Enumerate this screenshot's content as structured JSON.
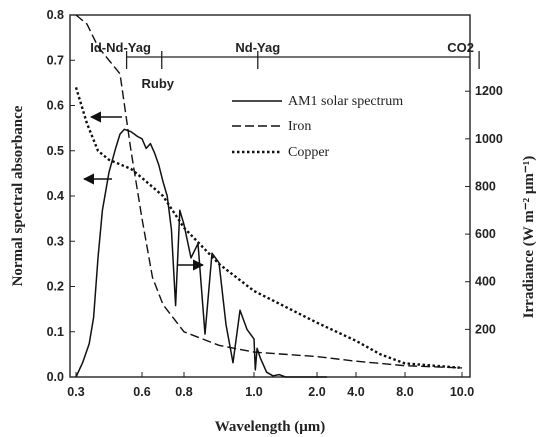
{
  "chart_data": {
    "type": "line",
    "xlabel": "Wavelength (μm)",
    "ylabel": "Normal spectral absorbance",
    "y2label": "Irradiance (W m⁻² μm⁻¹)",
    "xscale": "nonlinear (compressed beyond 1.0 μm)",
    "x_ticks": [
      "0.3",
      "0.6",
      "0.8",
      "1.0",
      "2.0",
      "4.0",
      "8.0",
      "10.0"
    ],
    "x_tick_values": [
      0.3,
      0.6,
      0.8,
      1.0,
      2.0,
      4.0,
      8.0,
      10.0
    ],
    "y_ticks": [
      "0.0",
      "0.1",
      "0.2",
      "0.3",
      "0.4",
      "0.5",
      "0.6",
      "0.7",
      "0.8"
    ],
    "y2_ticks": [
      "200",
      "400",
      "600",
      "800",
      "1000",
      "1200"
    ],
    "ylim": [
      0,
      0.8
    ],
    "y2lim": [
      0,
      1200
    ],
    "grid": false,
    "legend_position": "top-right",
    "laser_markers": [
      {
        "label": "Id-Nd-Yag",
        "x": 0.53
      },
      {
        "label": "Ruby",
        "x": 0.694
      },
      {
        "label": "Nd-Yag",
        "x": 1.06
      },
      {
        "label": "CO2",
        "x": 10.6
      }
    ],
    "series": [
      {
        "name": "AM1 solar spectrum",
        "axis": "right",
        "style": "solid",
        "x": [
          0.3,
          0.33,
          0.36,
          0.38,
          0.4,
          0.42,
          0.45,
          0.48,
          0.5,
          0.52,
          0.55,
          0.58,
          0.6,
          0.62,
          0.64,
          0.66,
          0.68,
          0.7,
          0.72,
          0.74,
          0.76,
          0.78,
          0.8,
          0.82,
          0.84,
          0.86,
          0.88,
          0.9,
          0.92,
          0.94,
          0.96,
          0.98,
          1.0,
          1.02,
          1.05,
          1.1,
          1.2,
          1.3,
          1.4,
          1.5,
          2.0,
          2.5
        ],
        "y": [
          0,
          60,
          140,
          250,
          500,
          700,
          860,
          960,
          1020,
          1040,
          1030,
          1010,
          1000,
          960,
          980,
          940,
          890,
          820,
          760,
          620,
          300,
          700,
          640,
          500,
          560,
          180,
          520,
          480,
          220,
          60,
          280,
          200,
          160,
          30,
          120,
          80,
          20,
          5,
          10,
          0,
          0,
          0
        ]
      },
      {
        "name": "Iron",
        "axis": "left",
        "style": "dashed",
        "x": [
          0.3,
          0.35,
          0.4,
          0.45,
          0.5,
          0.55,
          0.6,
          0.65,
          0.7,
          0.8,
          0.9,
          1.0,
          2.0,
          4.0,
          6.0,
          8.0,
          10.0
        ],
        "y": [
          0.8,
          0.78,
          0.73,
          0.7,
          0.67,
          0.5,
          0.35,
          0.22,
          0.16,
          0.1,
          0.07,
          0.055,
          0.045,
          0.035,
          0.03,
          0.025,
          0.02
        ]
      },
      {
        "name": "Copper",
        "axis": "left",
        "style": "dotted",
        "x": [
          0.3,
          0.35,
          0.4,
          0.45,
          0.5,
          0.55,
          0.6,
          0.7,
          0.8,
          0.9,
          1.0,
          2.0,
          4.0,
          6.0,
          8.0,
          10.0
        ],
        "y": [
          0.64,
          0.56,
          0.5,
          0.48,
          0.47,
          0.46,
          0.44,
          0.4,
          0.33,
          0.25,
          0.19,
          0.12,
          0.08,
          0.05,
          0.03,
          0.02
        ]
      }
    ]
  }
}
